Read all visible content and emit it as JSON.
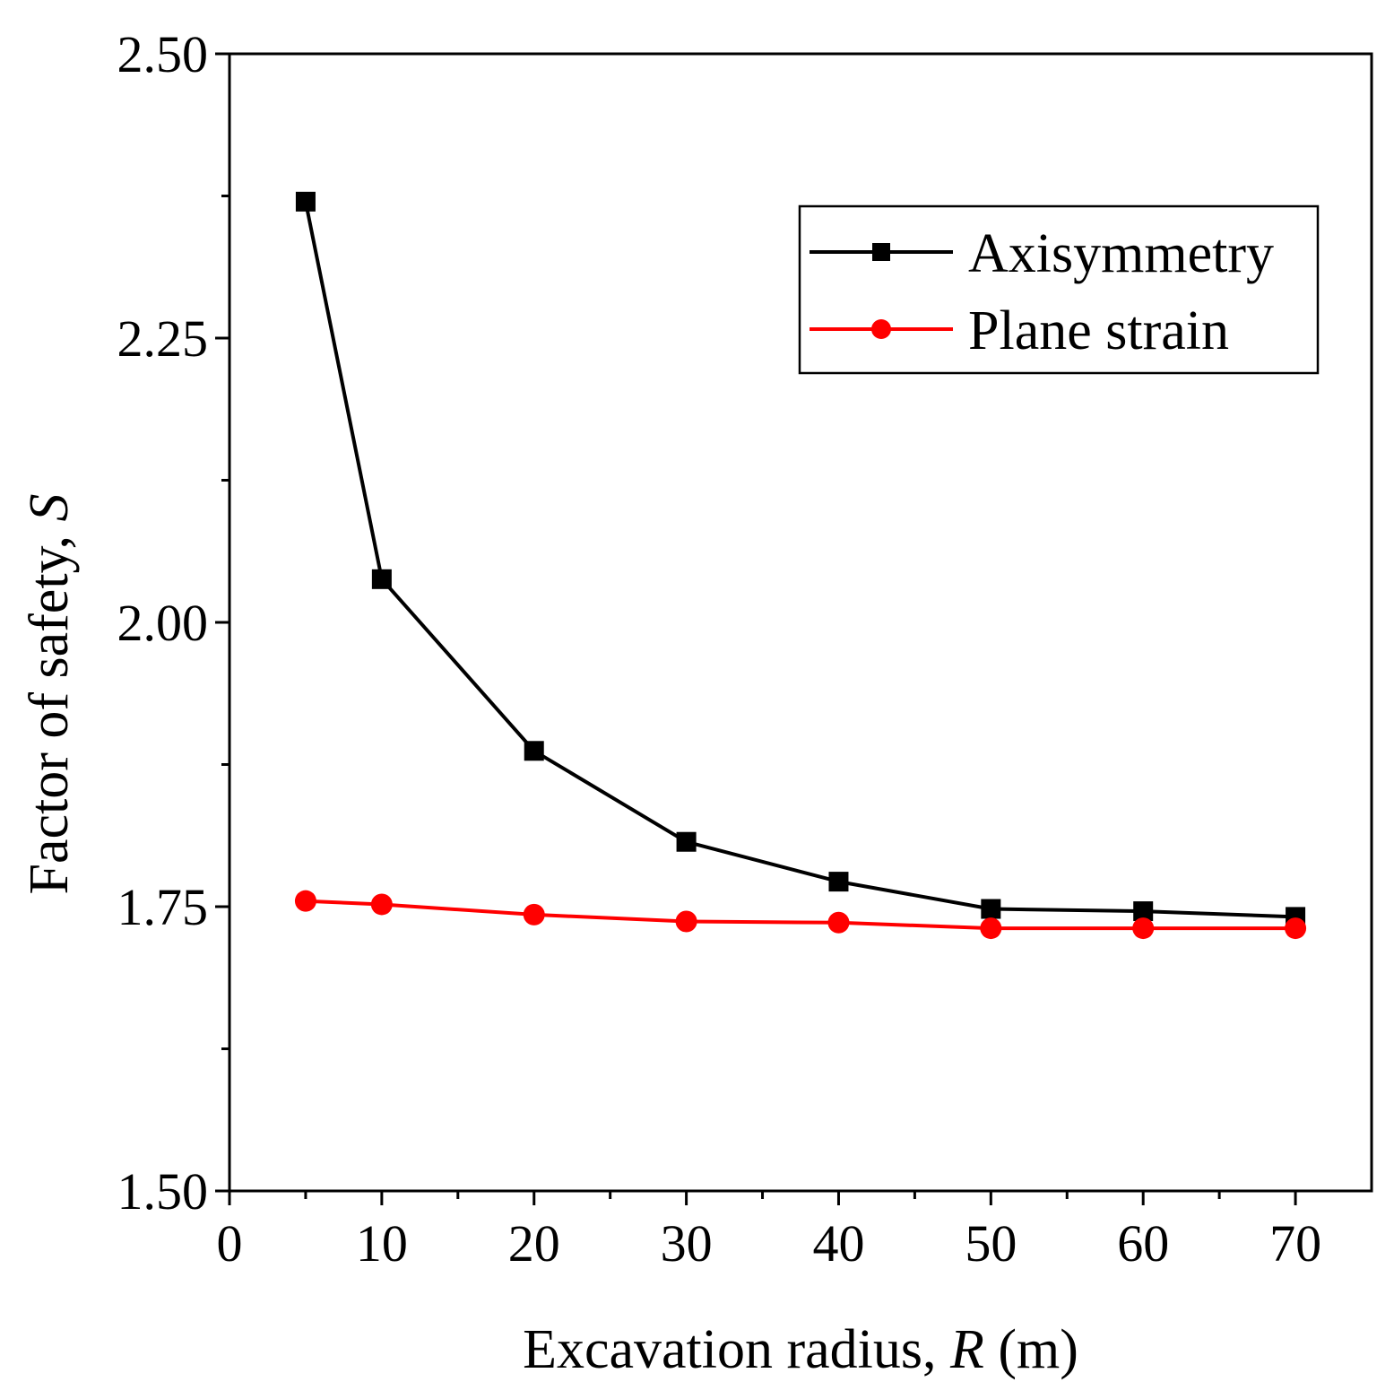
{
  "chart_data": {
    "type": "line",
    "title": "",
    "xlabel_prefix": "Excavation radius, ",
    "xlabel_var": "R",
    "xlabel_suffix": " (m)",
    "ylabel_prefix": "Factor of safety, ",
    "ylabel_var": "S",
    "xlim": [
      0,
      75
    ],
    "ylim": [
      1.5,
      2.5
    ],
    "x_ticks": [
      0,
      10,
      20,
      30,
      40,
      50,
      60,
      70
    ],
    "x_tick_labels": [
      "0",
      "10",
      "20",
      "30",
      "40",
      "50",
      "60",
      "70"
    ],
    "x_minor_ticks": [
      5,
      15,
      25,
      35,
      45,
      55,
      65
    ],
    "y_ticks": [
      1.5,
      1.75,
      2.0,
      2.25,
      2.5
    ],
    "y_tick_labels": [
      "1.50",
      "1.75",
      "2.00",
      "2.25",
      "2.50"
    ],
    "y_minor_ticks": [
      1.625,
      1.875,
      2.125,
      2.375
    ],
    "grid": false,
    "legend_position": "top-right",
    "x": [
      5,
      10,
      20,
      30,
      40,
      50,
      60,
      70
    ],
    "series": [
      {
        "name": "Axisymmetry",
        "color": "#000000",
        "marker": "square",
        "values": [
          2.37,
          2.038,
          1.887,
          1.807,
          1.772,
          1.748,
          1.746,
          1.741
        ]
      },
      {
        "name": "Plane strain",
        "color": "#ff0000",
        "marker": "circle",
        "values": [
          1.755,
          1.752,
          1.743,
          1.737,
          1.736,
          1.731,
          1.731,
          1.731
        ]
      }
    ]
  }
}
